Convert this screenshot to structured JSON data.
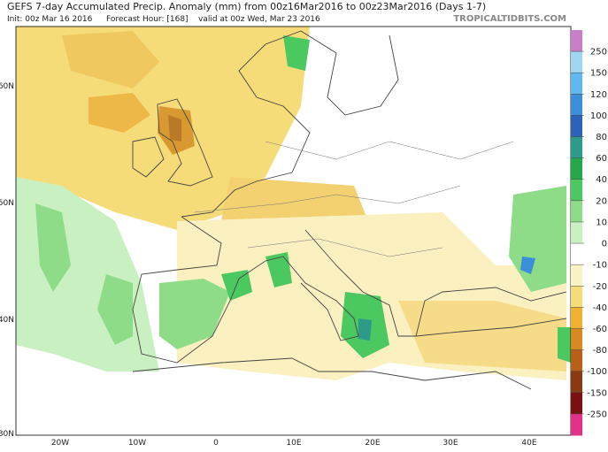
{
  "header": {
    "title": "GEFS 7-day Accumulated Precip. Anomaly (mm) from 00z16Mar2016 to 00z23Mar2016 (Days 1-7)",
    "init": "Init: 00z Mar 16 2016",
    "forecast_hour": "Forecast Hour: [168]",
    "valid": "valid at 00z Wed, Mar 23 2016",
    "site": "TROPICALTIDBITS.COM"
  },
  "map": {
    "lat_labels": [
      "60N",
      "50N",
      "40N",
      "30N"
    ],
    "lon_labels": [
      "20W",
      "10W",
      "0",
      "10E",
      "20E",
      "30E",
      "40E"
    ]
  },
  "colorbar": {
    "levels": [
      250,
      150,
      120,
      100,
      80,
      60,
      40,
      20,
      10,
      0,
      -10,
      -20,
      -40,
      -60,
      -80,
      -100,
      -150,
      -250
    ],
    "colors": [
      "#c77fc7",
      "#9fd6f2",
      "#60b8ee",
      "#3a8fd8",
      "#2b63b8",
      "#2e9a8a",
      "#23a84a",
      "#4cc860",
      "#8fdc88",
      "#c8f0c0",
      "#ffffff",
      "#fbf3c4",
      "#f6dc78",
      "#f0b030",
      "#d88a20",
      "#b86018",
      "#8a3a10",
      "#7a1010",
      "#e0308a"
    ]
  }
}
